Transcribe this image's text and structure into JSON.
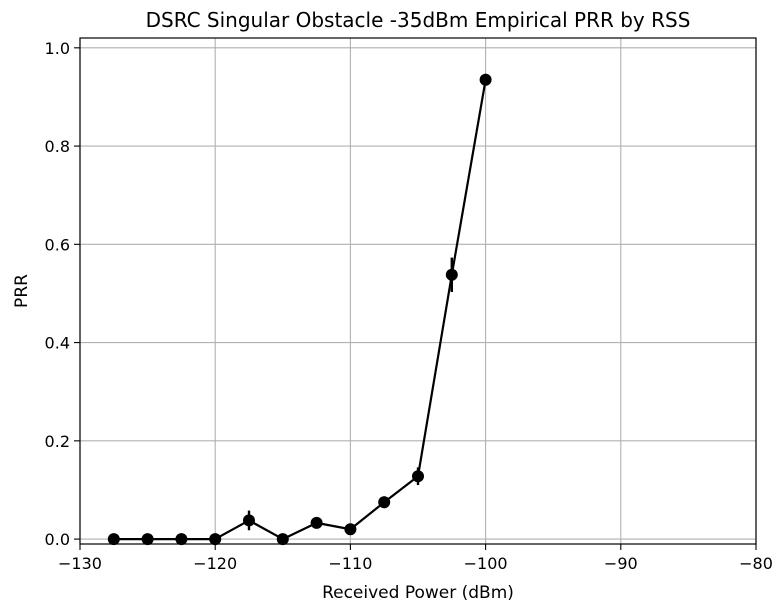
{
  "chart_data": {
    "type": "line",
    "title": "DSRC Singular Obstacle -35dBm Empirical PRR by RSS",
    "xlabel": "Received Power (dBm)",
    "ylabel": "PRR",
    "xlim": [
      -130,
      -80
    ],
    "ylim": [
      -0.01,
      1.02
    ],
    "x_ticks": [
      -130,
      -120,
      -110,
      -100,
      -90,
      -80
    ],
    "x_tick_labels": [
      "−130",
      "−120",
      "−110",
      "−100",
      "−90",
      "−80"
    ],
    "y_ticks": [
      0.0,
      0.2,
      0.4,
      0.6,
      0.8,
      1.0
    ],
    "y_tick_labels": [
      "0.0",
      "0.2",
      "0.4",
      "0.6",
      "0.8",
      "1.0"
    ],
    "grid": true,
    "series": [
      {
        "color": "#000000",
        "marker": "circle",
        "x": [
          -127.5,
          -125,
          -122.5,
          -120,
          -117.5,
          -115,
          -112.5,
          -110,
          -107.5,
          -105,
          -102.5,
          -100
        ],
        "y": [
          0.0,
          0.0,
          0.0,
          0.0,
          0.038,
          0.0,
          0.033,
          0.02,
          0.075,
          0.128,
          0.538,
          0.935
        ],
        "yerr": [
          0.0,
          0.0,
          0.0,
          0.0,
          0.02,
          0.0,
          0.008,
          0.008,
          0.012,
          0.018,
          0.035,
          0.012
        ]
      }
    ]
  }
}
